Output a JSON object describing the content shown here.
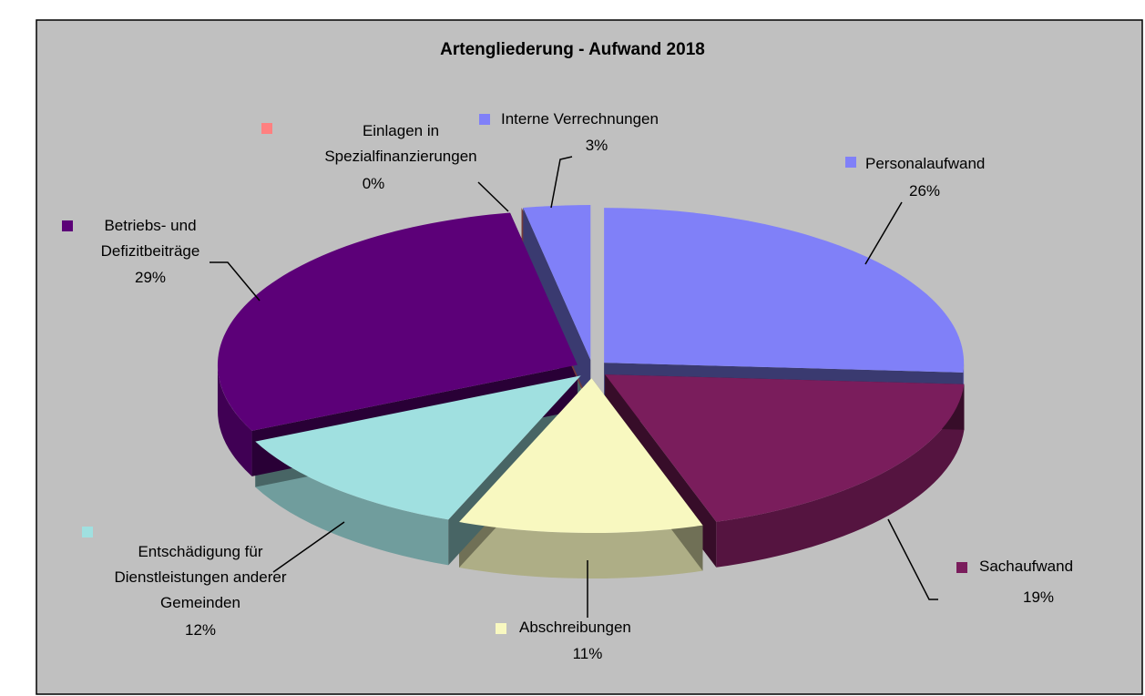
{
  "chart_data": {
    "type": "pie",
    "title": "Artengliederung - Aufwand 2018",
    "categories": [
      "Personalaufwand",
      "Sachaufwand",
      "Abschreibungen",
      "Entschädigung für Dienstleistungen anderer Gemeinden",
      "Betriebs- und Defizitbeiträge",
      "Einlagen in Spezialfinanzierungen",
      "Interne Verrechnungen"
    ],
    "values": [
      26,
      19,
      11,
      12,
      29,
      0,
      3
    ],
    "value_labels": [
      "26%",
      "19%",
      "11%",
      "12%",
      "29%",
      "0%",
      "3%"
    ],
    "colors": [
      "#8080f8",
      "#7a1d5c",
      "#f8f8c0",
      "#a0e0e0",
      "#5c0078",
      "#ff8080",
      "#8080f8"
    ]
  }
}
